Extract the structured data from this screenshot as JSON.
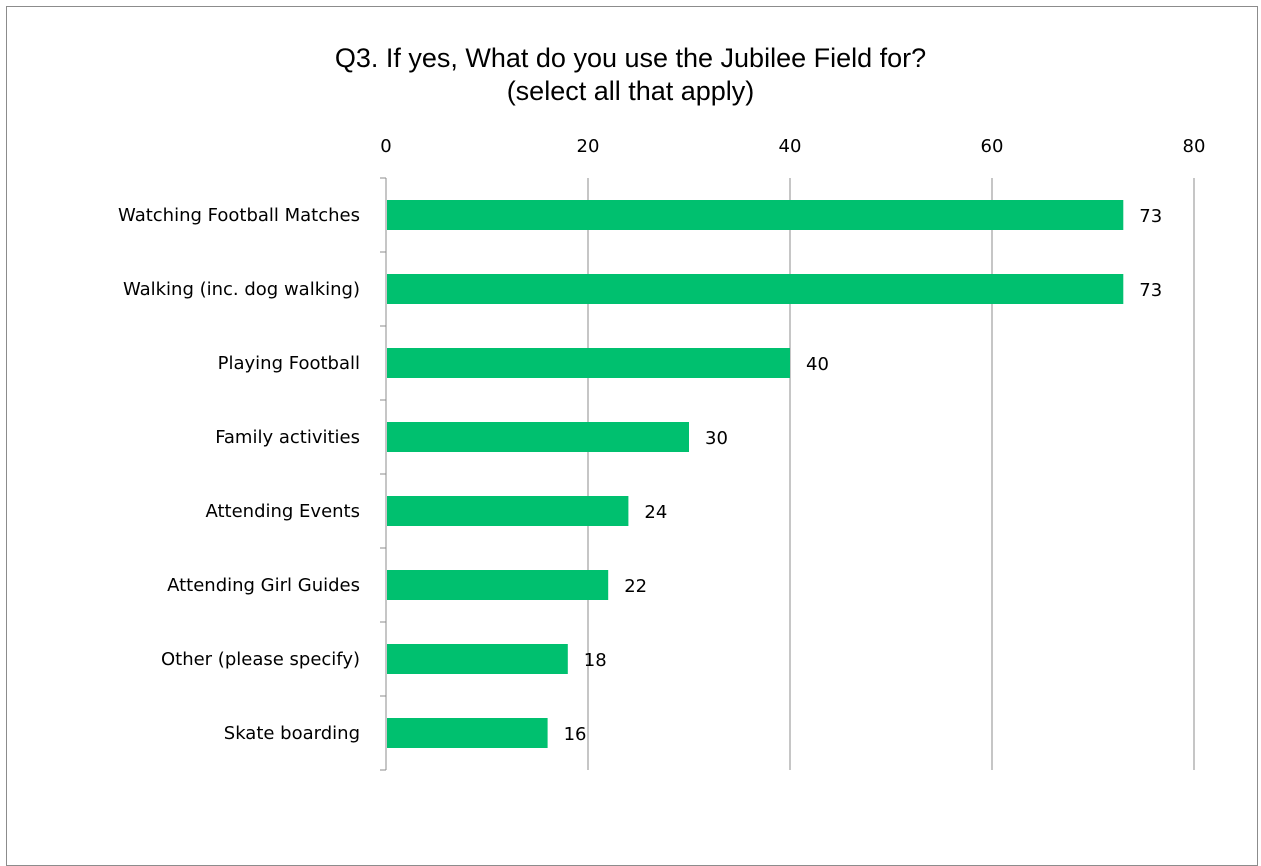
{
  "chart_data": {
    "type": "bar",
    "orientation": "horizontal",
    "title_line1": "Q3. If yes, What do you use the Jubilee Field for?",
    "title_line2": "(select all that apply)",
    "xlim": [
      0,
      80
    ],
    "x_ticks": [
      0,
      20,
      40,
      60,
      80
    ],
    "x_axis_position": "top",
    "grid": true,
    "categories": [
      "Watching Football Matches",
      "Walking (inc. dog walking)",
      "Playing Football",
      "Family activities",
      "Attending Events",
      "Attending Girl Guides",
      "Other (please specify)",
      "Skate boarding"
    ],
    "values": [
      73,
      73,
      40,
      30,
      24,
      22,
      18,
      16
    ],
    "bar_color": "#00c06f",
    "xlabel": "",
    "ylabel": ""
  }
}
